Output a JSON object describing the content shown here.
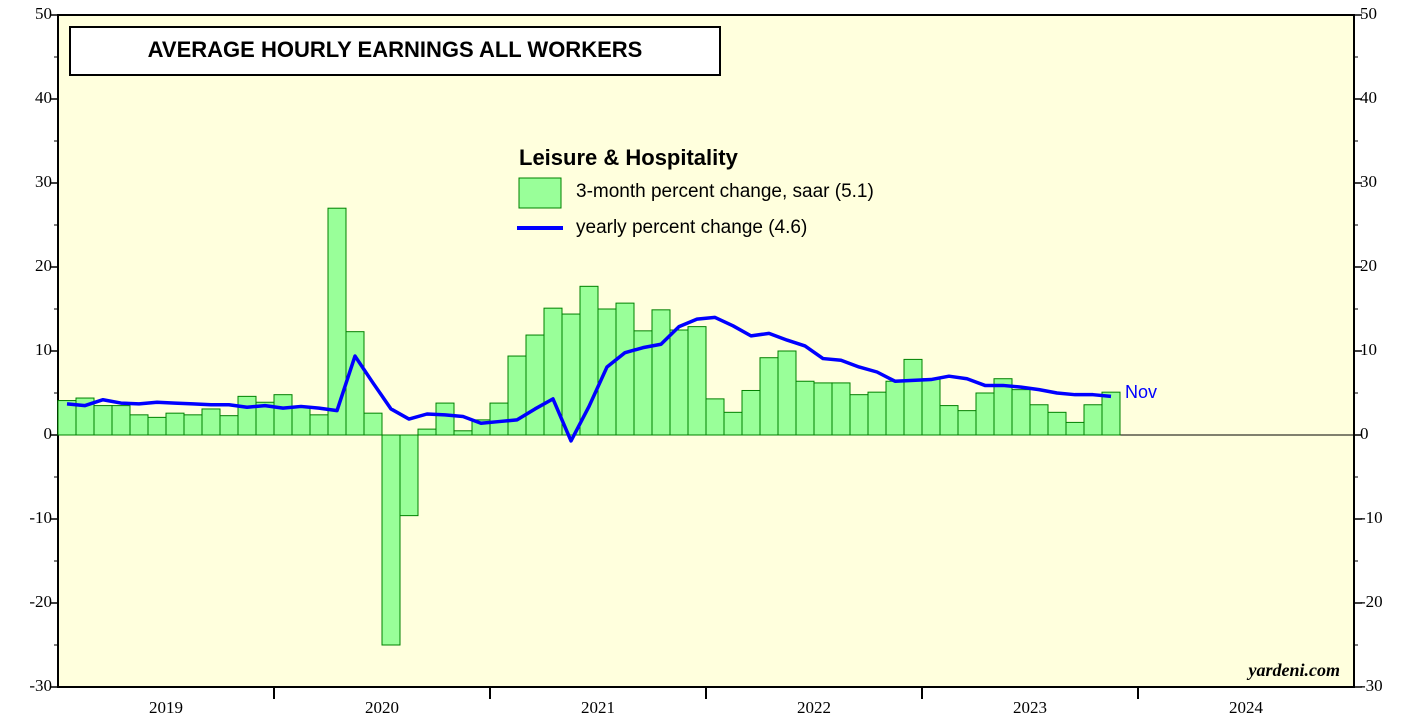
{
  "chart_data": {
    "type": "bar_line",
    "title": "AVERAGE HOURLY EARNINGS ALL WORKERS",
    "legend_title": "Leisure & Hospitality",
    "source": "yardeni.com",
    "end_label": "Nov",
    "years": [
      "2019",
      "2020",
      "2021",
      "2022",
      "2023",
      "2024"
    ],
    "months_per_year": 12,
    "ylim": [
      -30,
      50
    ],
    "yticks": [
      -30,
      -20,
      -10,
      0,
      10,
      20,
      30,
      40,
      50
    ],
    "y_minor_step": 5,
    "series": [
      {
        "name": "3-month percent change, saar (5.1)",
        "kind": "bar",
        "color": "#99ff99",
        "edge": "#008000",
        "values": [
          4.1,
          4.4,
          3.5,
          3.5,
          2.4,
          2.1,
          2.6,
          2.4,
          3.1,
          2.3,
          4.6,
          3.9,
          4.8,
          3.4,
          2.4,
          27.0,
          12.3,
          2.6,
          -25.0,
          -9.6,
          0.7,
          3.8,
          0.5,
          1.8,
          3.8,
          9.4,
          11.9,
          15.1,
          14.4,
          17.7,
          15.0,
          15.7,
          12.4,
          14.9,
          12.5,
          12.9,
          4.3,
          2.7,
          5.3,
          9.2,
          10.0,
          6.4,
          6.2,
          6.2,
          4.8,
          5.1,
          6.4,
          9.0,
          6.7,
          3.5,
          2.9,
          5.0,
          6.7,
          5.4,
          3.6,
          2.7,
          1.5,
          3.6,
          5.1
        ]
      },
      {
        "name": "yearly percent change (4.6)",
        "kind": "line",
        "color": "#0000ff",
        "values": [
          3.7,
          3.5,
          4.2,
          3.8,
          3.7,
          3.9,
          3.8,
          3.7,
          3.6,
          3.6,
          3.3,
          3.5,
          3.2,
          3.4,
          3.2,
          2.9,
          9.4,
          6.2,
          3.1,
          1.9,
          2.5,
          2.4,
          2.2,
          1.4,
          1.6,
          1.8,
          3.1,
          4.3,
          -0.7,
          3.4,
          8.1,
          9.8,
          10.4,
          10.8,
          12.9,
          13.8,
          14.0,
          13.0,
          11.8,
          12.1,
          11.3,
          10.6,
          9.1,
          8.9,
          8.1,
          7.5,
          6.4,
          6.5,
          6.6,
          7.0,
          6.7,
          5.9,
          5.9,
          5.7,
          5.4,
          5.0,
          4.8,
          4.8,
          4.6
        ]
      }
    ]
  }
}
